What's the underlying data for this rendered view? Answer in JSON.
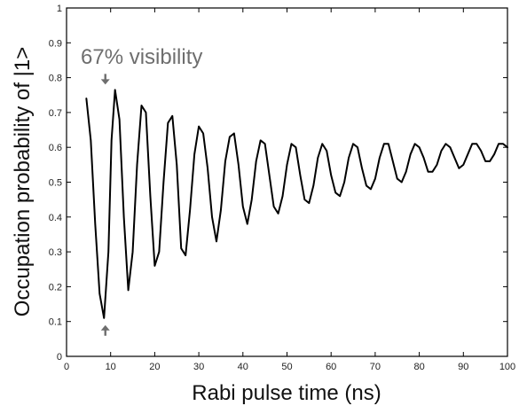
{
  "chart_data": {
    "type": "line",
    "xlabel": "Rabi pulse time (ns)",
    "ylabel": "Occupation probability of |1>",
    "xlim": [
      0,
      100
    ],
    "ylim": [
      0,
      1
    ],
    "xticks": [
      0,
      10,
      20,
      30,
      40,
      50,
      60,
      70,
      80,
      90,
      100
    ],
    "yticks": [
      0,
      0.1,
      0.2,
      0.3,
      0.4,
      0.5,
      0.6,
      0.7,
      0.8,
      0.9,
      1
    ],
    "xtick_labels": [
      "0",
      "10",
      "20",
      "30",
      "40",
      "50",
      "60",
      "70",
      "80",
      "90",
      "100"
    ],
    "ytick_labels": [
      "0",
      "0.1",
      "0.2",
      "0.3",
      "0.4",
      "0.5",
      "0.6",
      "0.7",
      "0.8",
      "0.9",
      "1"
    ],
    "grid": false,
    "annotation": {
      "text": "67% visibility",
      "arrow_x": 8.8,
      "arrow_top_y": 0.765,
      "arrow_bottom_y": 0.105
    },
    "series": [
      {
        "x": [
          4.5,
          5.5,
          6.5,
          7.5,
          8.5,
          9.5,
          10.2,
          11.0,
          12.0,
          13.0,
          14.0,
          15.0,
          16.0,
          17.0,
          18.0,
          19.0,
          20.0,
          21.0,
          22.0,
          23.0,
          24.0,
          25.0,
          26.0,
          27.0,
          28.0,
          29.0,
          30.0,
          31.0,
          32.0,
          33.0,
          34.0,
          35.0,
          36.0,
          37.0,
          38.0,
          39.0,
          40.0,
          41.0,
          42.0,
          43.0,
          44.0,
          45.0,
          46.0,
          47.0,
          48.0,
          49.0,
          50.0,
          51.0,
          52.0,
          53.0,
          54.0,
          55.0,
          56.0,
          57.0,
          58.0,
          59.0,
          60.0,
          61.0,
          62.0,
          63.0,
          64.0,
          65.0,
          66.0,
          67.0,
          68.0,
          69.0,
          70.0,
          71.0,
          72.0,
          73.0,
          74.0,
          75.0,
          76.0,
          77.0,
          78.0,
          79.0,
          80.0,
          81.0,
          82.0,
          83.0,
          84.0,
          85.0,
          86.0,
          87.0,
          88.0,
          89.0,
          90.0,
          91.0,
          92.0,
          93.0,
          94.0,
          95.0,
          96.0,
          97.0,
          98.0,
          99.0,
          100.0
        ],
        "y": [
          0.74,
          0.62,
          0.38,
          0.18,
          0.11,
          0.3,
          0.62,
          0.765,
          0.68,
          0.4,
          0.19,
          0.3,
          0.55,
          0.72,
          0.7,
          0.46,
          0.26,
          0.3,
          0.5,
          0.67,
          0.69,
          0.55,
          0.31,
          0.29,
          0.42,
          0.58,
          0.66,
          0.64,
          0.54,
          0.4,
          0.33,
          0.42,
          0.56,
          0.63,
          0.64,
          0.55,
          0.43,
          0.38,
          0.45,
          0.56,
          0.62,
          0.61,
          0.52,
          0.43,
          0.41,
          0.46,
          0.55,
          0.61,
          0.6,
          0.52,
          0.45,
          0.44,
          0.49,
          0.57,
          0.61,
          0.59,
          0.52,
          0.47,
          0.46,
          0.5,
          0.57,
          0.61,
          0.6,
          0.54,
          0.49,
          0.48,
          0.51,
          0.57,
          0.61,
          0.61,
          0.56,
          0.51,
          0.5,
          0.53,
          0.58,
          0.61,
          0.6,
          0.57,
          0.53,
          0.53,
          0.55,
          0.59,
          0.61,
          0.6,
          0.57,
          0.54,
          0.55,
          0.58,
          0.61,
          0.61,
          0.59,
          0.56,
          0.56,
          0.58,
          0.61,
          0.61,
          0.6
        ]
      }
    ]
  }
}
